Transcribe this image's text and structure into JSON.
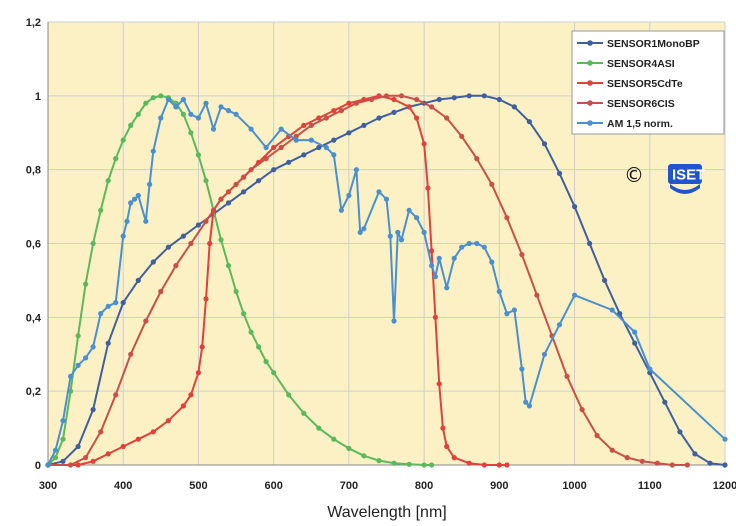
{
  "chart_data": {
    "type": "line",
    "xlabel": "Wavelength  [nm]",
    "ylabel": "",
    "xlim": [
      300,
      1200
    ],
    "ylim": [
      0,
      1.2
    ],
    "x_ticks": [
      "300",
      "400",
      "500",
      "600",
      "700",
      "800",
      "900",
      "1000",
      "1100",
      "1200"
    ],
    "y_ticks": [
      "0",
      "0,2",
      "0,4",
      "0,6",
      "0,8",
      "1",
      "1,2"
    ],
    "grid": true,
    "legend_position": "top-right",
    "background": "#fbf1c4",
    "series": [
      {
        "name": "SENSOR1 MonoBP",
        "name_main": "SENSOR1",
        "name_sub": "MonoBP",
        "color": "#3f5f9e",
        "x": [
          300,
          320,
          340,
          360,
          380,
          400,
          420,
          440,
          460,
          480,
          500,
          520,
          540,
          560,
          580,
          600,
          620,
          640,
          660,
          680,
          700,
          720,
          740,
          760,
          780,
          800,
          820,
          840,
          860,
          880,
          900,
          920,
          940,
          960,
          980,
          1000,
          1020,
          1040,
          1060,
          1080,
          1100,
          1120,
          1140,
          1160,
          1180,
          1200
        ],
        "y": [
          0.0,
          0.01,
          0.05,
          0.15,
          0.33,
          0.44,
          0.5,
          0.55,
          0.59,
          0.62,
          0.65,
          0.68,
          0.71,
          0.74,
          0.77,
          0.8,
          0.82,
          0.84,
          0.86,
          0.88,
          0.9,
          0.92,
          0.94,
          0.955,
          0.97,
          0.98,
          0.99,
          0.995,
          1.0,
          1.0,
          0.99,
          0.97,
          0.93,
          0.87,
          0.79,
          0.7,
          0.6,
          0.5,
          0.41,
          0.33,
          0.25,
          0.17,
          0.09,
          0.03,
          0.005,
          0.0
        ]
      },
      {
        "name": "SENSOR4 ASI",
        "name_main": "SENSOR4",
        "name_sub": "ASI",
        "color": "#5cb85c",
        "x": [
          300,
          310,
          320,
          330,
          340,
          350,
          360,
          370,
          380,
          390,
          400,
          410,
          420,
          430,
          440,
          450,
          460,
          470,
          480,
          490,
          500,
          510,
          520,
          530,
          540,
          550,
          560,
          570,
          580,
          590,
          600,
          620,
          640,
          660,
          680,
          700,
          720,
          740,
          760,
          780,
          800,
          810
        ],
        "y": [
          0.0,
          0.02,
          0.07,
          0.2,
          0.35,
          0.49,
          0.6,
          0.69,
          0.77,
          0.83,
          0.88,
          0.92,
          0.95,
          0.98,
          0.995,
          1.0,
          0.995,
          0.98,
          0.95,
          0.9,
          0.84,
          0.77,
          0.69,
          0.61,
          0.54,
          0.47,
          0.41,
          0.36,
          0.32,
          0.28,
          0.25,
          0.19,
          0.14,
          0.1,
          0.07,
          0.045,
          0.025,
          0.012,
          0.005,
          0.002,
          0.0,
          0.0
        ]
      },
      {
        "name": "SENSOR5 CdTe",
        "name_main": "SENSOR5",
        "name_sub": "CdTe",
        "color": "#e0413a",
        "x": [
          300,
          340,
          360,
          380,
          400,
          420,
          440,
          460,
          480,
          490,
          500,
          505,
          510,
          515,
          520,
          530,
          540,
          560,
          580,
          600,
          620,
          640,
          660,
          680,
          700,
          720,
          740,
          760,
          780,
          790,
          800,
          805,
          810,
          815,
          820,
          825,
          830,
          840,
          860,
          880,
          900,
          910
        ],
        "y": [
          0.0,
          0.0,
          0.01,
          0.03,
          0.05,
          0.07,
          0.09,
          0.12,
          0.16,
          0.19,
          0.25,
          0.32,
          0.45,
          0.6,
          0.69,
          0.72,
          0.74,
          0.78,
          0.82,
          0.86,
          0.89,
          0.92,
          0.94,
          0.96,
          0.98,
          0.99,
          1.0,
          0.99,
          0.97,
          0.94,
          0.87,
          0.75,
          0.58,
          0.4,
          0.22,
          0.1,
          0.05,
          0.02,
          0.005,
          0.0,
          0.0,
          0.0
        ]
      },
      {
        "name": "SENSOR6 CIS",
        "name_main": "SENSOR6",
        "name_sub": "CIS",
        "color": "#c9504a",
        "x": [
          300,
          330,
          350,
          370,
          390,
          410,
          430,
          450,
          470,
          490,
          510,
          530,
          550,
          570,
          590,
          610,
          630,
          650,
          670,
          690,
          710,
          730,
          750,
          770,
          790,
          810,
          830,
          850,
          870,
          890,
          910,
          930,
          950,
          970,
          990,
          1010,
          1030,
          1050,
          1070,
          1090,
          1110,
          1130,
          1150
        ],
        "y": [
          0.0,
          0.0,
          0.02,
          0.09,
          0.19,
          0.3,
          0.39,
          0.47,
          0.54,
          0.6,
          0.66,
          0.72,
          0.76,
          0.8,
          0.83,
          0.86,
          0.89,
          0.92,
          0.94,
          0.96,
          0.98,
          0.99,
          1.0,
          1.0,
          0.99,
          0.97,
          0.94,
          0.89,
          0.83,
          0.76,
          0.67,
          0.57,
          0.46,
          0.35,
          0.24,
          0.15,
          0.08,
          0.04,
          0.02,
          0.01,
          0.005,
          0.0,
          0.0
        ]
      },
      {
        "name": "AM 1,5 norm.",
        "name_main": "AM 1,5 norm.",
        "name_sub": "",
        "color": "#4a8fd0",
        "x": [
          300,
          310,
          320,
          330,
          340,
          350,
          360,
          370,
          380,
          390,
          400,
          405,
          410,
          415,
          420,
          430,
          435,
          440,
          450,
          460,
          470,
          480,
          490,
          500,
          510,
          520,
          530,
          540,
          550,
          570,
          590,
          610,
          630,
          650,
          670,
          680,
          690,
          700,
          710,
          715,
          720,
          740,
          750,
          755,
          760,
          765,
          770,
          780,
          790,
          800,
          810,
          815,
          820,
          830,
          840,
          850,
          860,
          870,
          880,
          890,
          900,
          910,
          920,
          930,
          935,
          940,
          960,
          980,
          1000,
          1050,
          1080,
          1100,
          1200
        ],
        "y": [
          0.0,
          0.04,
          0.12,
          0.24,
          0.27,
          0.29,
          0.32,
          0.41,
          0.43,
          0.44,
          0.62,
          0.66,
          0.71,
          0.72,
          0.73,
          0.66,
          0.76,
          0.85,
          0.94,
          0.99,
          0.97,
          0.99,
          0.95,
          0.94,
          0.98,
          0.91,
          0.97,
          0.96,
          0.95,
          0.91,
          0.86,
          0.91,
          0.88,
          0.88,
          0.86,
          0.84,
          0.69,
          0.73,
          0.8,
          0.63,
          0.64,
          0.74,
          0.72,
          0.62,
          0.39,
          0.63,
          0.61,
          0.69,
          0.67,
          0.63,
          0.54,
          0.51,
          0.56,
          0.48,
          0.56,
          0.59,
          0.6,
          0.6,
          0.59,
          0.55,
          0.47,
          0.41,
          0.42,
          0.26,
          0.17,
          0.16,
          0.3,
          0.38,
          0.46,
          0.42,
          0.36,
          0.26,
          0.07
        ]
      }
    ]
  },
  "annotations": {
    "copyright_symbol": "©",
    "logo_text": "ISET",
    "logo_color": "#2255cc"
  }
}
